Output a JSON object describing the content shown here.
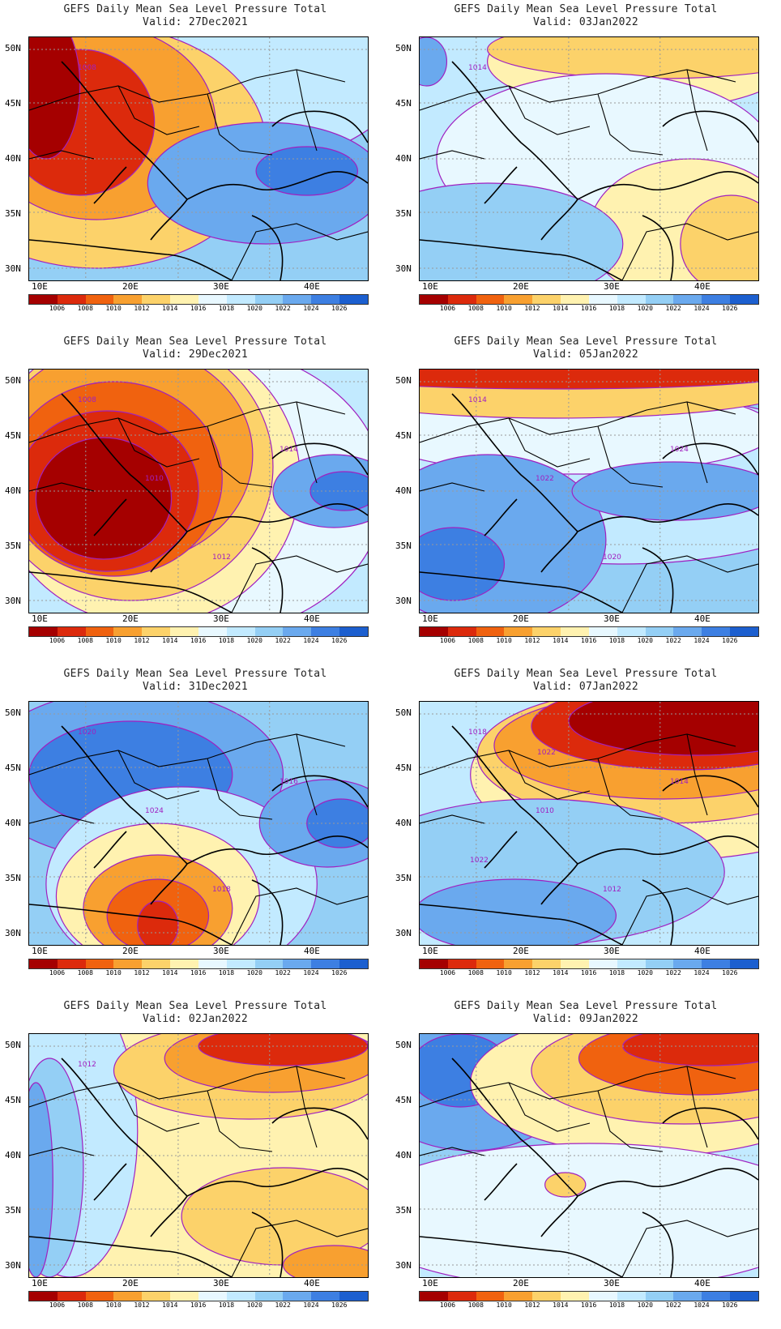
{
  "header_line": "GEFS Daily Mean Sea Level Pressure Total",
  "lat_labels": [
    "50N",
    "45N",
    "40N",
    "35N",
    "30N"
  ],
  "lon_labels": [
    "10E",
    "20E",
    "30E",
    "40E"
  ],
  "colorbar": {
    "levels": [
      "1006",
      "1008",
      "1010",
      "1012",
      "1014",
      "1016",
      "1018",
      "1020",
      "1022",
      "1024",
      "1026"
    ],
    "colors": [
      "#a50000",
      "#dc2a0c",
      "#f0620f",
      "#f8a030",
      "#fcd26a",
      "#fff2b0",
      "#e8f8ff",
      "#c2eaff",
      "#94cff5",
      "#6aa9ee",
      "#3d7fe2",
      "#1c5fcf"
    ]
  },
  "panels": [
    {
      "title": "GEFS Daily Mean Sea Level Pressure Total",
      "valid": "Valid: 27Dec2021",
      "labels": [
        "1008"
      ],
      "bg": "#94cff5",
      "blobs": [
        [
          "#c2eaff",
          0.55,
          0.05,
          0.6,
          0.5
        ],
        [
          "#fcd26a",
          0.2,
          0.45,
          0.5,
          0.5
        ],
        [
          "#f8a030",
          0.2,
          0.35,
          0.35,
          0.4
        ],
        [
          "#dc2a0c",
          0.15,
          0.35,
          0.22,
          0.3
        ],
        [
          "#a50000",
          0.05,
          0.2,
          0.1,
          0.3
        ],
        [
          "#6aa9ee",
          0.7,
          0.6,
          0.35,
          0.25
        ],
        [
          "#3d7fe2",
          0.82,
          0.55,
          0.15,
          0.1
        ]
      ]
    },
    {
      "title": "GEFS Daily Mean Sea Level Pressure Total",
      "valid": "Valid: 03Jan2022",
      "labels": [
        "1014"
      ],
      "bg": "#c2eaff",
      "blobs": [
        [
          "#fff2b0",
          0.65,
          0.1,
          0.45,
          0.2
        ],
        [
          "#fcd26a",
          0.7,
          0.05,
          0.5,
          0.12
        ],
        [
          "#e8f8ff",
          0.55,
          0.5,
          0.5,
          0.35
        ],
        [
          "#fff2b0",
          0.8,
          0.8,
          0.3,
          0.3
        ],
        [
          "#fcd26a",
          0.92,
          0.85,
          0.15,
          0.2
        ],
        [
          "#94cff5",
          0.2,
          0.85,
          0.4,
          0.25
        ],
        [
          "#6aa9ee",
          0.02,
          0.1,
          0.06,
          0.1
        ]
      ]
    },
    {
      "title": "GEFS Daily Mean Sea Level Pressure Total",
      "valid": "Valid: 29Dec2021",
      "labels": [
        "1008",
        "1010",
        "1012",
        "1014"
      ],
      "bg": "#c2eaff",
      "blobs": [
        [
          "#e8f8ff",
          0.5,
          0.5,
          0.55,
          0.6
        ],
        [
          "#fff2b0",
          0.35,
          0.45,
          0.45,
          0.6
        ],
        [
          "#fcd26a",
          0.3,
          0.4,
          0.42,
          0.55
        ],
        [
          "#f8a030",
          0.28,
          0.35,
          0.38,
          0.45
        ],
        [
          "#f0620f",
          0.25,
          0.45,
          0.32,
          0.4
        ],
        [
          "#dc2a0c",
          0.23,
          0.5,
          0.27,
          0.33
        ],
        [
          "#a50000",
          0.22,
          0.53,
          0.2,
          0.25
        ],
        [
          "#6aa9ee",
          0.9,
          0.5,
          0.18,
          0.15
        ],
        [
          "#3d7fe2",
          0.93,
          0.5,
          0.1,
          0.08
        ]
      ]
    },
    {
      "title": "GEFS Daily Mean Sea Level Pressure Total",
      "valid": "Valid: 05Jan2022",
      "labels": [
        "1014",
        "1022",
        "1020",
        "1024"
      ],
      "bg": "#94cff5",
      "blobs": [
        [
          "#c2eaff",
          0.6,
          0.45,
          0.7,
          0.35
        ],
        [
          "#e8f8ff",
          0.45,
          0.25,
          0.6,
          0.18
        ],
        [
          "#fcd26a",
          0.4,
          0.08,
          0.7,
          0.12
        ],
        [
          "#dc2a0c",
          0.4,
          0.02,
          0.7,
          0.06
        ],
        [
          "#6aa9ee",
          0.2,
          0.7,
          0.35,
          0.35
        ],
        [
          "#3d7fe2",
          0.1,
          0.8,
          0.15,
          0.15
        ],
        [
          "#6aa9ee",
          0.75,
          0.5,
          0.3,
          0.12
        ]
      ]
    },
    {
      "title": "GEFS Daily Mean Sea Level Pressure Total",
      "valid": "Valid: 31Dec2021",
      "labels": [
        "1020",
        "1024",
        "1018",
        "1016"
      ],
      "bg": "#94cff5",
      "blobs": [
        [
          "#6aa9ee",
          0.3,
          0.3,
          0.45,
          0.35
        ],
        [
          "#3d7fe2",
          0.3,
          0.3,
          0.3,
          0.22
        ],
        [
          "#c2eaff",
          0.45,
          0.75,
          0.4,
          0.4
        ],
        [
          "#fff2b0",
          0.38,
          0.8,
          0.3,
          0.3
        ],
        [
          "#f8a030",
          0.38,
          0.85,
          0.22,
          0.22
        ],
        [
          "#f0620f",
          0.38,
          0.88,
          0.15,
          0.15
        ],
        [
          "#dc2a0c",
          0.38,
          0.92,
          0.06,
          0.1
        ],
        [
          "#6aa9ee",
          0.88,
          0.5,
          0.2,
          0.18
        ],
        [
          "#3d7fe2",
          0.92,
          0.5,
          0.1,
          0.1
        ]
      ]
    },
    {
      "title": "GEFS Daily Mean Sea Level Pressure Total",
      "valid": "Valid: 07Jan2022",
      "labels": [
        "1018",
        "1010",
        "1012",
        "1014",
        "1022",
        "1022"
      ],
      "bg": "#c2eaff",
      "blobs": [
        [
          "#fff2b0",
          0.75,
          0.3,
          0.6,
          0.35
        ],
        [
          "#fcd26a",
          0.72,
          0.22,
          0.55,
          0.28
        ],
        [
          "#f8a030",
          0.72,
          0.18,
          0.5,
          0.22
        ],
        [
          "#dc2a0c",
          0.78,
          0.1,
          0.45,
          0.18
        ],
        [
          "#a50000",
          0.82,
          0.08,
          0.38,
          0.14
        ],
        [
          "#94cff5",
          0.35,
          0.7,
          0.55,
          0.3
        ],
        [
          "#6aa9ee",
          0.28,
          0.88,
          0.3,
          0.15
        ]
      ]
    },
    {
      "title": "GEFS Daily Mean Sea Level Pressure Total",
      "valid": "Valid: 02Jan2022",
      "labels": [
        "1012"
      ],
      "bg": "#fff2b0",
      "blobs": [
        [
          "#c2eaff",
          0.12,
          0.4,
          0.2,
          0.6
        ],
        [
          "#94cff5",
          0.06,
          0.55,
          0.1,
          0.45
        ],
        [
          "#6aa9ee",
          0.02,
          0.6,
          0.05,
          0.4
        ],
        [
          "#fcd26a",
          0.65,
          0.15,
          0.4,
          0.2
        ],
        [
          "#f8a030",
          0.72,
          0.1,
          0.32,
          0.14
        ],
        [
          "#dc2a0c",
          0.75,
          0.05,
          0.25,
          0.08
        ],
        [
          "#fcd26a",
          0.75,
          0.75,
          0.3,
          0.2
        ],
        [
          "#f8a030",
          0.9,
          0.95,
          0.15,
          0.08
        ]
      ]
    },
    {
      "title": "GEFS Daily Mean Sea Level Pressure Total",
      "valid": "Valid: 09Jan2022",
      "labels": [],
      "bg": "#c2eaff",
      "blobs": [
        [
          "#94cff5",
          0.2,
          0.3,
          0.4,
          0.4
        ],
        [
          "#6aa9ee",
          0.15,
          0.2,
          0.3,
          0.28
        ],
        [
          "#3d7fe2",
          0.12,
          0.15,
          0.15,
          0.15
        ],
        [
          "#fff2b0",
          0.7,
          0.2,
          0.55,
          0.3
        ],
        [
          "#fcd26a",
          0.78,
          0.15,
          0.45,
          0.22
        ],
        [
          "#f0620f",
          0.82,
          0.1,
          0.35,
          0.15
        ],
        [
          "#dc2a0c",
          0.85,
          0.05,
          0.25,
          0.08
        ],
        [
          "#e8f8ff",
          0.5,
          0.75,
          0.7,
          0.3
        ],
        [
          "#fcd26a",
          0.43,
          0.62,
          0.06,
          0.05
        ]
      ]
    }
  ]
}
